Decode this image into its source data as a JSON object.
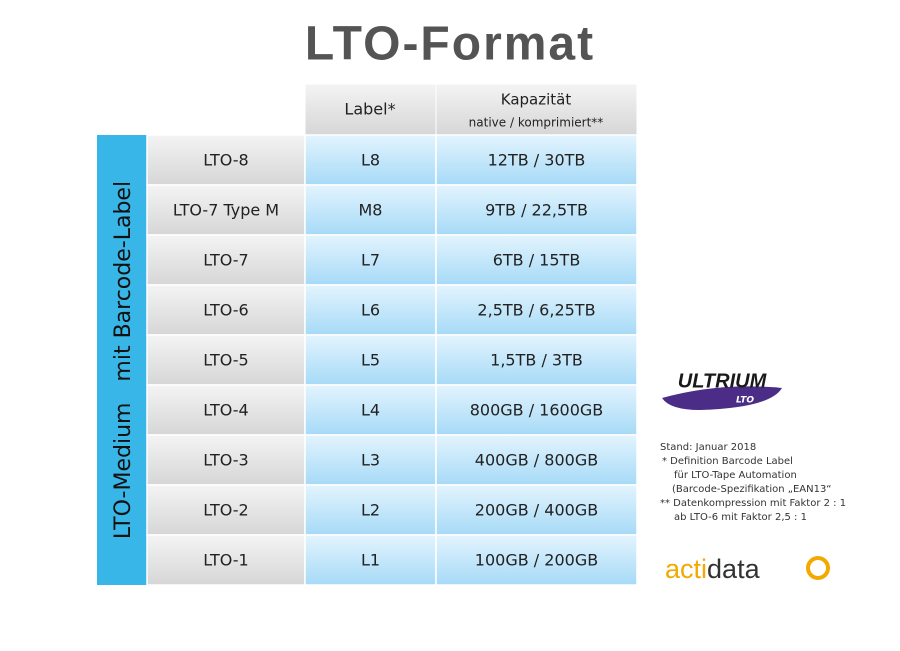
{
  "title": "LTO-Format",
  "table": {
    "side_label": "LTO-Medium   mit Barcode-Label",
    "header": {
      "label": "Label*",
      "capacity": "Kapazität",
      "capacity_sub": "native / komprimiert**"
    },
    "rows": [
      [
        "LTO-8",
        "L8",
        "12TB / 30TB"
      ],
      [
        "LTO-7 Type M",
        "M8",
        "9TB / 22,5TB"
      ],
      [
        "LTO-7",
        "L7",
        "6TB / 15TB"
      ],
      [
        "LTO-6",
        "L6",
        "2,5TB / 6,25TB"
      ],
      [
        "LTO-5",
        "L5",
        "1,5TB / 3TB"
      ],
      [
        "LTO-4",
        "L4",
        "800GB / 1600GB"
      ],
      [
        "LTO-3",
        "L3",
        "400GB / 800GB"
      ],
      [
        "LTO-2",
        "L2",
        "200GB / 400GB"
      ],
      [
        "LTO-1",
        "L1",
        "100GB / 200GB"
      ]
    ]
  },
  "logos": {
    "ultrium": "ULTRIUM",
    "lto": "LTO",
    "acti": "acti",
    "data": "data"
  },
  "notes": [
    "Stand: Januar 2018",
    "* Definition Barcode Label",
    "für LTO-Tape Automation",
    "(Barcode-Spezifikation „EAN13“",
    "** Datenkompression mit Faktor 2 : 1",
    "ab LTO-6 mit Faktor 2,5 : 1"
  ]
}
